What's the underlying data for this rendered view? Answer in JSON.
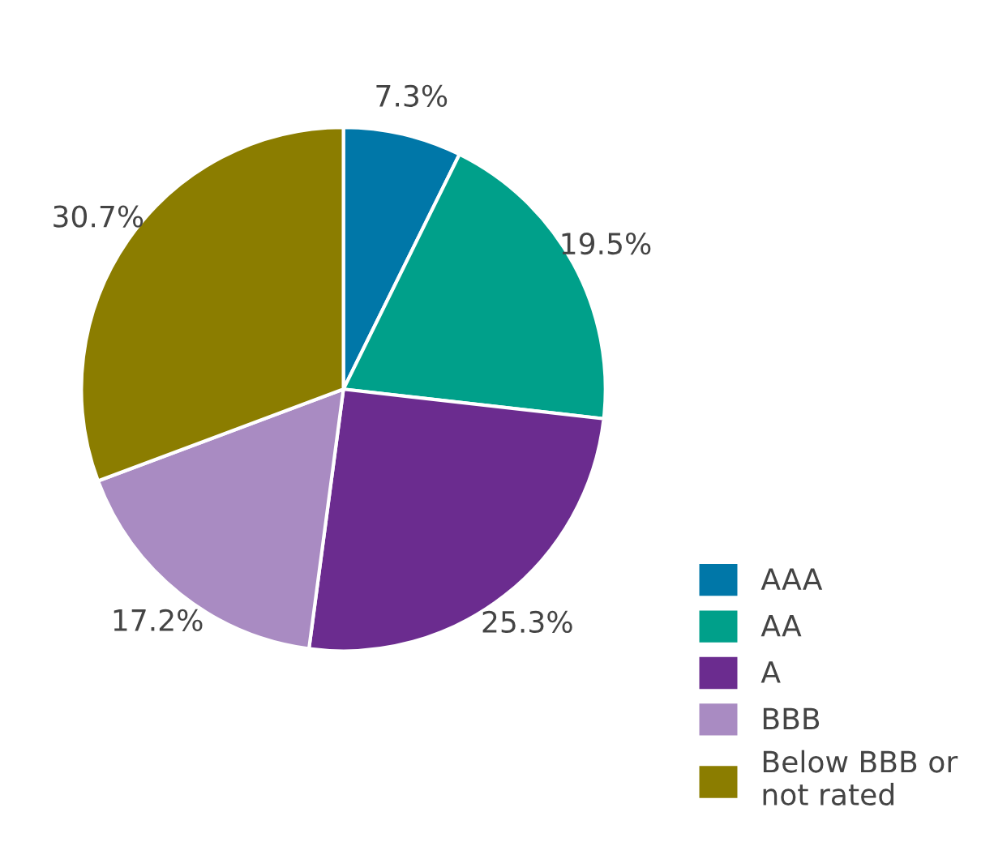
{
  "chart_data": {
    "type": "pie",
    "categories": [
      "AAA",
      "AA",
      "A",
      "BBB",
      "Below BBB or\nnot rated"
    ],
    "values": [
      7.3,
      19.5,
      25.3,
      17.2,
      30.7
    ],
    "value_labels": [
      "7.3%",
      "19.5%",
      "25.3%",
      "17.2%",
      "30.7%"
    ],
    "colors": [
      "#0077a8",
      "#00a08a",
      "#6b2c8f",
      "#a98bc2",
      "#8b7d00"
    ],
    "legend": "bottom right"
  }
}
